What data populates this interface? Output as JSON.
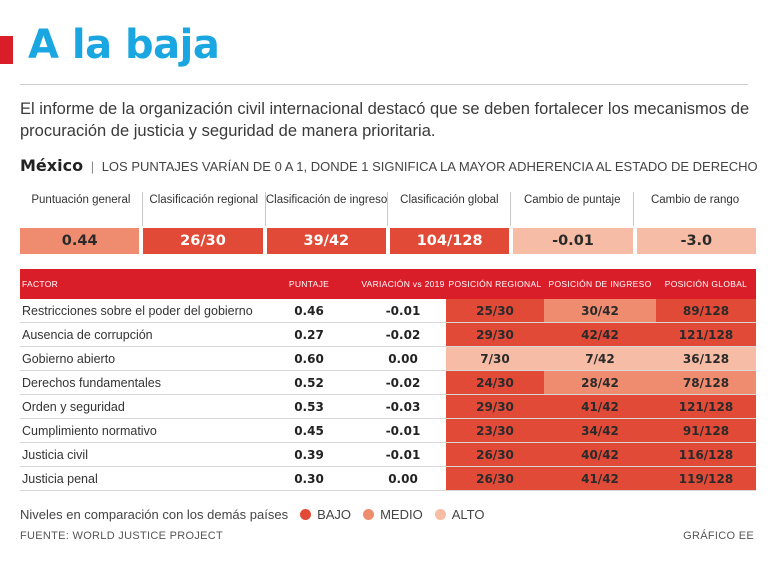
{
  "colors": {
    "bajo": "#e24a38",
    "medio": "#ef8c6f",
    "alto": "#f7bca5",
    "accent": "#d91e2a",
    "title": "#1aa6e0"
  },
  "header": {
    "title": "A la baja",
    "intro": "El informe de la organización civil internacional destacó que se deben fortalecer los mecanismos de procuración de justicia y seguridad de manera prioritaria.",
    "country": "México",
    "separator": "|",
    "scale_note": "LOS PUNTAJES VARÍAN DE 0 A 1, DONDE 1 SIGNIFICA LA MAYOR ADHERENCIA AL ESTADO DE DERECHO"
  },
  "chart_data": {
    "type": "table",
    "title": "A la baja",
    "summary": [
      {
        "label": "Puntuación general",
        "value": "0.44",
        "level": "medio"
      },
      {
        "label": "Clasificación regional",
        "value": "26/30",
        "level": "bajo"
      },
      {
        "label": "Clasificación de ingreso",
        "value": "39/42",
        "level": "bajo"
      },
      {
        "label": "Clasificación global",
        "value": "104/128",
        "level": "bajo"
      },
      {
        "label": "Cambio de puntaje",
        "value": "-0.01",
        "level": "alto"
      },
      {
        "label": "Cambio de rango",
        "value": "-3.0",
        "level": "alto"
      }
    ],
    "columns": [
      "FACTOR",
      "PUNTAJE",
      "VARIACIÓN vs 2019",
      "POSICIÓN REGIONAL",
      "POSICIÓN DE INGRESO",
      "POSICIÓN GLOBAL"
    ],
    "rows": [
      {
        "factor": "Restricciones sobre el poder del gobierno",
        "score": "0.46",
        "variation": "-0.01",
        "regional": "25/30",
        "regional_level": "bajo",
        "income": "30/42",
        "income_level": "medio",
        "global": "89/128",
        "global_level": "bajo"
      },
      {
        "factor": "Ausencia de corrupción",
        "score": "0.27",
        "variation": "-0.02",
        "regional": "29/30",
        "regional_level": "bajo",
        "income": "42/42",
        "income_level": "bajo",
        "global": "121/128",
        "global_level": "bajo"
      },
      {
        "factor": "Gobierno abierto",
        "score": "0.60",
        "variation": "0.00",
        "regional": "7/30",
        "regional_level": "alto",
        "income": "7/42",
        "income_level": "alto",
        "global": "36/128",
        "global_level": "alto"
      },
      {
        "factor": "Derechos fundamentales",
        "score": "0.52",
        "variation": "-0.02",
        "regional": "24/30",
        "regional_level": "bajo",
        "income": "28/42",
        "income_level": "medio",
        "global": "78/128",
        "global_level": "medio"
      },
      {
        "factor": "Orden y seguridad",
        "score": "0.53",
        "variation": "-0.03",
        "regional": "29/30",
        "regional_level": "bajo",
        "income": "41/42",
        "income_level": "bajo",
        "global": "121/128",
        "global_level": "bajo"
      },
      {
        "factor": "Cumplimiento normativo",
        "score": "0.45",
        "variation": "-0.01",
        "regional": "23/30",
        "regional_level": "bajo",
        "income": "34/42",
        "income_level": "bajo",
        "global": "91/128",
        "global_level": "bajo"
      },
      {
        "factor": "Justicia civil",
        "score": "0.39",
        "variation": "-0.01",
        "regional": "26/30",
        "regional_level": "bajo",
        "income": "40/42",
        "income_level": "bajo",
        "global": "116/128",
        "global_level": "bajo"
      },
      {
        "factor": "Justicia penal",
        "score": "0.30",
        "variation": "0.00",
        "regional": "26/30",
        "regional_level": "bajo",
        "income": "41/42",
        "income_level": "bajo",
        "global": "119/128",
        "global_level": "bajo"
      }
    ],
    "legend": {
      "label": "Niveles en comparación con los demás países",
      "items": [
        "BAJO",
        "MEDIO",
        "ALTO"
      ]
    }
  },
  "footer": {
    "source": "FUENTE: WORLD JUSTICE PROJECT",
    "credit": "GRÁFICO EE"
  }
}
